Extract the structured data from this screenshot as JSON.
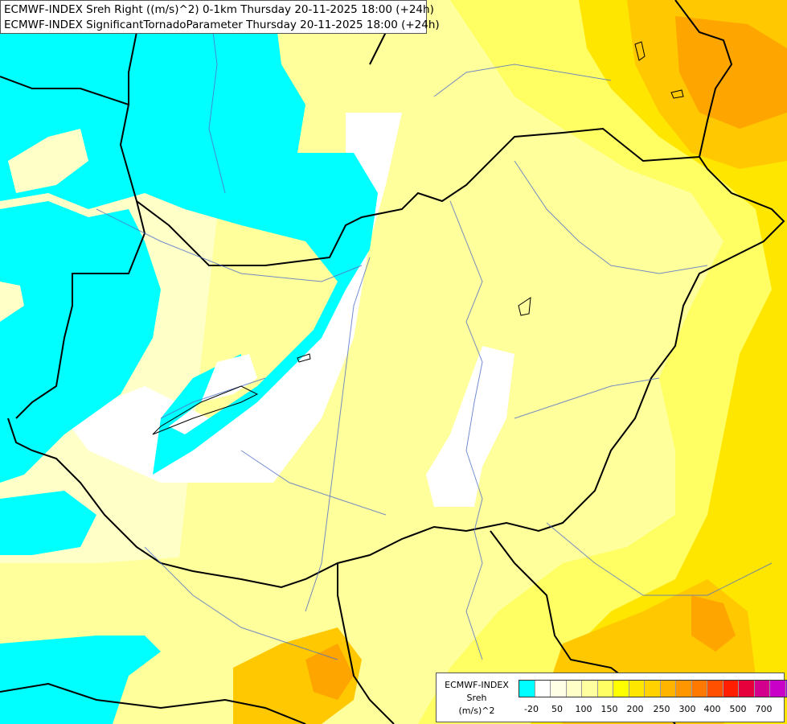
{
  "map": {
    "title_line_1": "ECMWF-INDEX Sreh Right ((m/s)^2) 0-1km Thursday 20-11-2025 18:00 (+24h)",
    "title_line_2": "ECMWF-INDEX SignificantTornadoParameter Thursday 20-11-2025 18:00 (+24h)",
    "background_colors": {
      "cyan": "#00ffff",
      "pale_yellow": "#ffffc8",
      "light_yellow": "#ffff9c",
      "yellow": "#ffff64",
      "golden": "#ffe600",
      "orange_yellow": "#ffc800",
      "orange": "#ffa500"
    }
  },
  "legend": {
    "line_1": "ECMWF-INDEX",
    "line_2": "Sreh",
    "line_3": "(m/s)^2",
    "colors": [
      "#00ffff",
      "#ffffff",
      "#ffffe6",
      "#ffffc8",
      "#ffffa0",
      "#ffff64",
      "#ffff00",
      "#ffe600",
      "#ffd200",
      "#ffb400",
      "#ff9600",
      "#ff7800",
      "#ff5000",
      "#ff1e00",
      "#e6003c",
      "#d2008c",
      "#c800c8",
      "#9600dc",
      "#6400c8",
      "#3c00b4",
      "#1e0096",
      "#000080"
    ],
    "ticks": [
      "-20",
      "50",
      "100",
      "150",
      "200",
      "250",
      "300",
      "400",
      "500",
      "700"
    ]
  }
}
